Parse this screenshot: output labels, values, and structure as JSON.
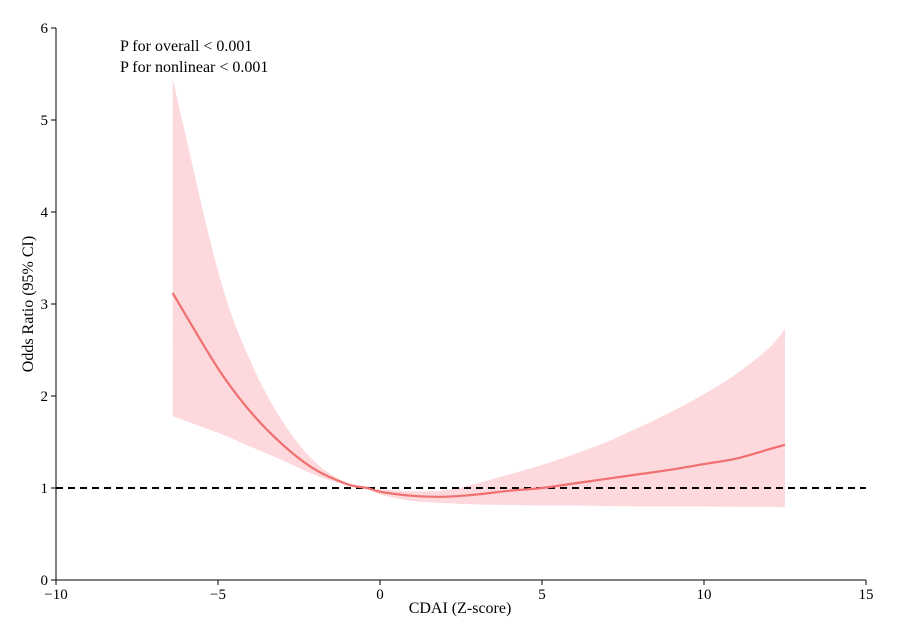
{
  "chart_data": {
    "type": "line",
    "title": "",
    "xlabel": "CDAI (Z-score)",
    "ylabel": "Odds Ratio (95% CI)",
    "xlim": [
      -10,
      15
    ],
    "ylim": [
      0,
      6
    ],
    "x_ticks": [
      "−10",
      "−5",
      "0",
      "5",
      "10",
      "15"
    ],
    "x_tick_values": [
      -10,
      -5,
      0,
      5,
      10,
      15
    ],
    "y_ticks": [
      "0",
      "1",
      "2",
      "3",
      "4",
      "5",
      "6"
    ],
    "y_tick_values": [
      0,
      1,
      2,
      3,
      4,
      5,
      6
    ],
    "reference_line": {
      "y": 1,
      "style": "dashed",
      "color": "#000000"
    },
    "annotations": [
      "P for overall < 0.001",
      "P for nonlinear < 0.001"
    ],
    "series": [
      {
        "x": [
          -6.4,
          -5,
          -4,
          -3,
          -2,
          -1,
          -0.4,
          0,
          1,
          2,
          3,
          4,
          5,
          6,
          7,
          8,
          9,
          10,
          11,
          12,
          12.5
        ],
        "y": [
          3.12,
          2.3,
          1.83,
          1.47,
          1.2,
          1.04,
          1.0,
          0.96,
          0.915,
          0.905,
          0.93,
          0.97,
          1.0,
          1.05,
          1.1,
          1.15,
          1.2,
          1.26,
          1.32,
          1.42,
          1.47
        ],
        "lower": [
          1.78,
          1.6,
          1.45,
          1.3,
          1.14,
          1.03,
          1.0,
          0.93,
          0.86,
          0.835,
          0.82,
          0.815,
          0.81,
          0.81,
          0.805,
          0.8,
          0.8,
          0.8,
          0.795,
          0.795,
          0.79
        ],
        "upper": [
          5.45,
          3.36,
          2.38,
          1.72,
          1.28,
          1.05,
          1.0,
          0.985,
          0.965,
          0.975,
          1.05,
          1.15,
          1.25,
          1.37,
          1.5,
          1.66,
          1.83,
          2.02,
          2.24,
          2.52,
          2.73
        ],
        "color": "#f07070",
        "band_color": "#fdd8dc"
      }
    ]
  }
}
